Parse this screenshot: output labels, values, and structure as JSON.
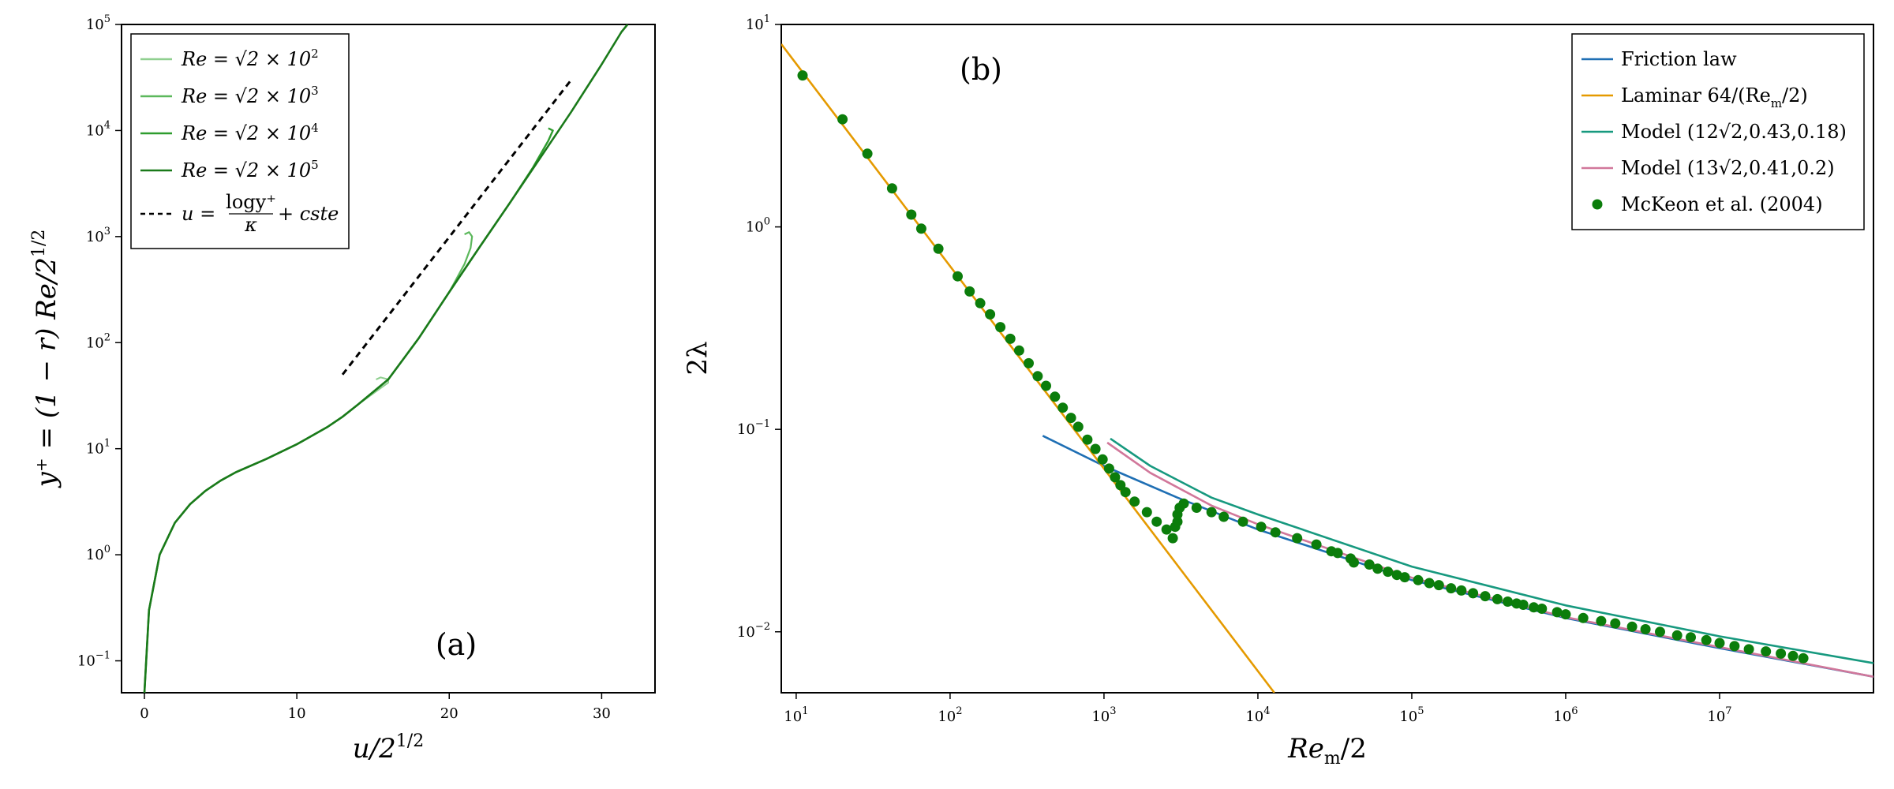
{
  "chart_data": [
    {
      "panel": "(a)",
      "type": "line",
      "xlabel": "u/2^{1/2}",
      "ylabel": "y⁺ = (1 − r) Re/2^{1/2}",
      "xlim": [
        -1.5,
        33.5
      ],
      "ylim": [
        0.05,
        100000
      ],
      "yscale": "log",
      "xticks": [
        0,
        10,
        20,
        30
      ],
      "yticks": [
        {
          "value": 0.1,
          "base": "10",
          "exp": "−1"
        },
        {
          "value": 1,
          "base": "10",
          "exp": "0"
        },
        {
          "value": 10,
          "base": "10",
          "exp": "1"
        },
        {
          "value": 100,
          "base": "10",
          "exp": "2"
        },
        {
          "value": 1000,
          "base": "10",
          "exp": "3"
        },
        {
          "value": 10000,
          "base": "10",
          "exp": "4"
        },
        {
          "value": 100000,
          "base": "10",
          "exp": "5"
        }
      ],
      "legend_position": "top-left",
      "series": [
        {
          "name": "Re = √2 × 10²",
          "legend_main": "Re = √2 × 10",
          "legend_sup": "2",
          "color": "#8fcf8f",
          "width": 2.0,
          "points": [
            [
              0,
              0.05
            ],
            [
              0.3,
              0.3
            ],
            [
              1,
              1
            ],
            [
              2,
              2
            ],
            [
              3,
              3
            ],
            [
              4,
              4
            ],
            [
              5,
              5
            ],
            [
              6,
              6
            ],
            [
              8,
              8
            ],
            [
              10,
              11
            ],
            [
              12,
              16
            ],
            [
              13,
              20
            ],
            [
              14,
              26
            ],
            [
              15,
              33
            ],
            [
              16,
              42
            ],
            [
              16,
              45
            ],
            [
              15.5,
              47
            ],
            [
              15.2,
              45
            ]
          ]
        },
        {
          "name": "Re = √2 × 10³",
          "legend_main": "Re = √2 × 10",
          "legend_sup": "3",
          "color": "#5cb85c",
          "width": 2.2,
          "points": [
            [
              0,
              0.05
            ],
            [
              0.3,
              0.3
            ],
            [
              1,
              1
            ],
            [
              2,
              2
            ],
            [
              3,
              3
            ],
            [
              4,
              4
            ],
            [
              5,
              5
            ],
            [
              6,
              6
            ],
            [
              8,
              8
            ],
            [
              10,
              11
            ],
            [
              12,
              16
            ],
            [
              13,
              20
            ],
            [
              14,
              26
            ],
            [
              16,
              45
            ],
            [
              18,
              110
            ],
            [
              20,
              300
            ],
            [
              21,
              550
            ],
            [
              21.4,
              780
            ],
            [
              21.5,
              1000
            ],
            [
              21.3,
              1100
            ],
            [
              21,
              1050
            ]
          ]
        },
        {
          "name": "Re = √2 × 10⁴",
          "legend_main": "Re = √2 × 10",
          "legend_sup": "4",
          "color": "#2e9c2e",
          "width": 2.4,
          "points": [
            [
              0,
              0.05
            ],
            [
              0.3,
              0.3
            ],
            [
              1,
              1
            ],
            [
              2,
              2
            ],
            [
              3,
              3
            ],
            [
              4,
              4
            ],
            [
              5,
              5
            ],
            [
              6,
              6
            ],
            [
              8,
              8
            ],
            [
              10,
              11
            ],
            [
              12,
              16
            ],
            [
              13,
              20
            ],
            [
              14,
              26
            ],
            [
              16,
              45
            ],
            [
              18,
              110
            ],
            [
              20,
              300
            ],
            [
              22,
              800
            ],
            [
              24,
              2100
            ],
            [
              25.5,
              4500
            ],
            [
              26.5,
              8000
            ],
            [
              26.8,
              10000
            ],
            [
              26.5,
              10500
            ]
          ]
        },
        {
          "name": "Re = √2 × 10⁵",
          "legend_main": "Re = √2 × 10",
          "legend_sup": "5",
          "color": "#1a7a1a",
          "width": 2.6,
          "points": [
            [
              0,
              0.05
            ],
            [
              0.3,
              0.3
            ],
            [
              1,
              1
            ],
            [
              2,
              2
            ],
            [
              3,
              3
            ],
            [
              4,
              4
            ],
            [
              5,
              5
            ],
            [
              6,
              6
            ],
            [
              8,
              8
            ],
            [
              10,
              11
            ],
            [
              12,
              16
            ],
            [
              13,
              20
            ],
            [
              14,
              26
            ],
            [
              16,
              45
            ],
            [
              18,
              110
            ],
            [
              20,
              300
            ],
            [
              22,
              800
            ],
            [
              24,
              2100
            ],
            [
              26,
              5600
            ],
            [
              28,
              15000
            ],
            [
              30,
              42000
            ],
            [
              31.3,
              85000
            ],
            [
              31.7,
              100000
            ]
          ]
        }
      ],
      "reference_line": {
        "name": "u = log y⁺/κ + cste",
        "legend_text": "u =",
        "legend_frac_num": "logy⁺",
        "legend_frac_den": "κ",
        "legend_tail": "+ cste",
        "color": "#000000",
        "dash": "8,6",
        "points": [
          [
            13,
            50
          ],
          [
            28,
            30000
          ]
        ]
      },
      "panel_label_position": "bottom-right"
    },
    {
      "panel": "(b)",
      "type": "line+scatter",
      "xlabel": "Re_m/2",
      "ylabel": "2λ",
      "xscale": "log",
      "yscale": "log",
      "xlim": [
        8,
        100000000
      ],
      "ylim": [
        0.005,
        10
      ],
      "xticks": [
        {
          "value": 10,
          "base": "10",
          "exp": "1"
        },
        {
          "value": 100,
          "base": "10",
          "exp": "2"
        },
        {
          "value": 1000,
          "base": "10",
          "exp": "3"
        },
        {
          "value": 10000,
          "base": "10",
          "exp": "4"
        },
        {
          "value": 100000,
          "base": "10",
          "exp": "5"
        },
        {
          "value": 1000000,
          "base": "10",
          "exp": "6"
        },
        {
          "value": 10000000,
          "base": "10",
          "exp": "7"
        }
      ],
      "yticks": [
        {
          "value": 0.01,
          "base": "10",
          "exp": "−2"
        },
        {
          "value": 0.1,
          "base": "10",
          "exp": "−1"
        },
        {
          "value": 1,
          "base": "10",
          "exp": "0"
        },
        {
          "value": 10,
          "base": "10",
          "exp": "1"
        }
      ],
      "legend_position": "top-right",
      "series": [
        {
          "name": "Friction law",
          "color": "#1f6fb4",
          "points": [
            [
              400,
              0.093
            ],
            [
              1000,
              0.066
            ],
            [
              3000,
              0.046
            ],
            [
              10000,
              0.032
            ],
            [
              100000,
              0.018
            ],
            [
              1000000,
              0.0117
            ],
            [
              10000000,
              0.0083
            ],
            [
              100000000,
              0.006
            ]
          ]
        },
        {
          "name": "Laminar 64/(Re_m/2)",
          "legend_main": "Laminar 64/(Re",
          "legend_sub": "m",
          "legend_tail": "/2)",
          "color": "#e59a00",
          "points": [
            [
              8,
              8
            ],
            [
              12800,
              0.005
            ]
          ]
        },
        {
          "name": "Model (12√2,0.43,0.18)",
          "color": "#17997f",
          "points": [
            [
              1100,
              0.09
            ],
            [
              2000,
              0.066
            ],
            [
              5000,
              0.046
            ],
            [
              10000,
              0.038
            ],
            [
              100000,
              0.021
            ],
            [
              1000000,
              0.0135
            ],
            [
              10000000,
              0.0095
            ],
            [
              100000000,
              0.007
            ]
          ]
        },
        {
          "name": "Model (13√2,0.41,0.2)",
          "color": "#d1779a",
          "points": [
            [
              1050,
              0.086
            ],
            [
              2000,
              0.061
            ],
            [
              5000,
              0.042
            ],
            [
              10000,
              0.034
            ],
            [
              100000,
              0.0185
            ],
            [
              1000000,
              0.0118
            ],
            [
              10000000,
              0.0084
            ],
            [
              100000000,
              0.006
            ]
          ]
        }
      ],
      "scatter": {
        "name": "McKeon et al. (2004)",
        "color": "#0b7d0b",
        "points": [
          [
            11,
            5.6
          ],
          [
            20,
            3.4
          ],
          [
            29,
            2.3
          ],
          [
            42,
            1.55
          ],
          [
            56,
            1.15
          ],
          [
            65,
            0.98
          ],
          [
            84,
            0.78
          ],
          [
            112,
            0.57
          ],
          [
            134,
            0.48
          ],
          [
            157,
            0.42
          ],
          [
            182,
            0.37
          ],
          [
            212,
            0.32
          ],
          [
            246,
            0.28
          ],
          [
            281,
            0.245
          ],
          [
            324,
            0.212
          ],
          [
            371,
            0.183
          ],
          [
            420,
            0.164
          ],
          [
            480,
            0.145
          ],
          [
            540,
            0.128
          ],
          [
            610,
            0.114
          ],
          [
            680,
            0.103
          ],
          [
            780,
            0.089
          ],
          [
            880,
            0.08
          ],
          [
            980,
            0.071
          ],
          [
            1080,
            0.064
          ],
          [
            1180,
            0.058
          ],
          [
            1280,
            0.053
          ],
          [
            1380,
            0.049
          ],
          [
            1580,
            0.044
          ],
          [
            1900,
            0.039
          ],
          [
            2200,
            0.035
          ],
          [
            2550,
            0.032
          ],
          [
            2800,
            0.029
          ],
          [
            2900,
            0.033
          ],
          [
            3000,
            0.035
          ],
          [
            3000,
            0.038
          ],
          [
            3100,
            0.041
          ],
          [
            3300,
            0.043
          ],
          [
            4000,
            0.041
          ],
          [
            5000,
            0.039
          ],
          [
            6000,
            0.037
          ],
          [
            8000,
            0.035
          ],
          [
            10500,
            0.033
          ],
          [
            13000,
            0.031
          ],
          [
            18000,
            0.029
          ],
          [
            24000,
            0.027
          ],
          [
            30000,
            0.025
          ],
          [
            33000,
            0.0245
          ],
          [
            40000,
            0.023
          ],
          [
            42000,
            0.022
          ],
          [
            53000,
            0.0215
          ],
          [
            60000,
            0.0205
          ],
          [
            70000,
            0.0198
          ],
          [
            80000,
            0.0191
          ],
          [
            90000,
            0.0186
          ],
          [
            110000,
            0.018
          ],
          [
            130000,
            0.0174
          ],
          [
            150000,
            0.017
          ],
          [
            180000,
            0.0164
          ],
          [
            210000,
            0.016
          ],
          [
            250000,
            0.0155
          ],
          [
            300000,
            0.015
          ],
          [
            360000,
            0.0145
          ],
          [
            420000,
            0.0141
          ],
          [
            480000,
            0.0138
          ],
          [
            530000,
            0.0136
          ],
          [
            620000,
            0.0132
          ],
          [
            700000,
            0.013
          ],
          [
            880000,
            0.0125
          ],
          [
            1000000,
            0.0122
          ],
          [
            1300000,
            0.0117
          ],
          [
            1700000,
            0.0113
          ],
          [
            2100000,
            0.011
          ],
          [
            2700000,
            0.0106
          ],
          [
            3300000,
            0.0103
          ],
          [
            4100000,
            0.01
          ],
          [
            5300000,
            0.0096
          ],
          [
            6500000,
            0.0094
          ],
          [
            8200000,
            0.0091
          ],
          [
            10000000,
            0.0088
          ],
          [
            12500000,
            0.0085
          ],
          [
            15500000,
            0.0082
          ],
          [
            20000000,
            0.008
          ],
          [
            25000000,
            0.0078
          ],
          [
            30000000,
            0.0076
          ],
          [
            35000000,
            0.0074
          ]
        ]
      },
      "panel_label_position": "top-left"
    }
  ],
  "panel_labels": {
    "a": "(a)",
    "b": "(b)"
  },
  "axis_labels": {
    "a_x": "u/2",
    "a_x_sup": "1/2",
    "a_y": "y⁺ = (1 − r) Re/2",
    "a_y_sup": "1/2",
    "b_x": "Re",
    "b_x_sub": "m",
    "b_x_tail": "/2",
    "b_y": "2λ"
  }
}
